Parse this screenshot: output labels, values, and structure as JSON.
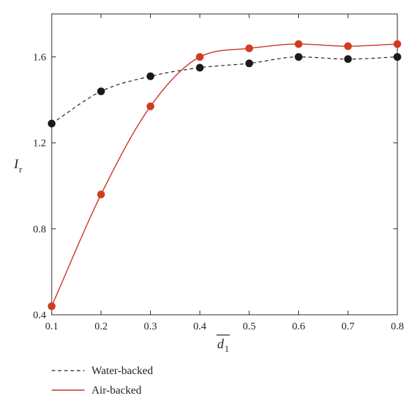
{
  "chart_data": {
    "type": "line",
    "title": "",
    "xlabel": {
      "main": "d",
      "sub": "1"
    },
    "ylabel": {
      "main": "I",
      "sub": "r"
    },
    "xlim": [
      0.1,
      0.8
    ],
    "ylim": [
      0.4,
      1.8
    ],
    "x_ticks": [
      "0.1",
      "0.2",
      "0.3",
      "0.4",
      "0.5",
      "0.6",
      "0.7",
      "0.8"
    ],
    "y_ticks": [
      "0.4",
      "0.8",
      "1.2",
      "1.6"
    ],
    "grid": false,
    "legend_position": "below-left",
    "series": [
      {
        "name": "Water-backed",
        "line_style": "dashed",
        "color": "#1a1a1a",
        "marker_color": "#1a1a1a",
        "x": [
          0.1,
          0.2,
          0.3,
          0.4,
          0.5,
          0.6,
          0.7,
          0.8
        ],
        "y": [
          1.29,
          1.44,
          1.51,
          1.55,
          1.57,
          1.6,
          1.59,
          1.6
        ]
      },
      {
        "name": "Air-backed",
        "line_style": "solid",
        "color": "#c62d1f",
        "marker_color": "#d23a22",
        "x": [
          0.1,
          0.2,
          0.3,
          0.4,
          0.5,
          0.6,
          0.7,
          0.8
        ],
        "y": [
          0.44,
          0.96,
          1.37,
          1.6,
          1.64,
          1.66,
          1.65,
          1.66
        ]
      }
    ]
  }
}
